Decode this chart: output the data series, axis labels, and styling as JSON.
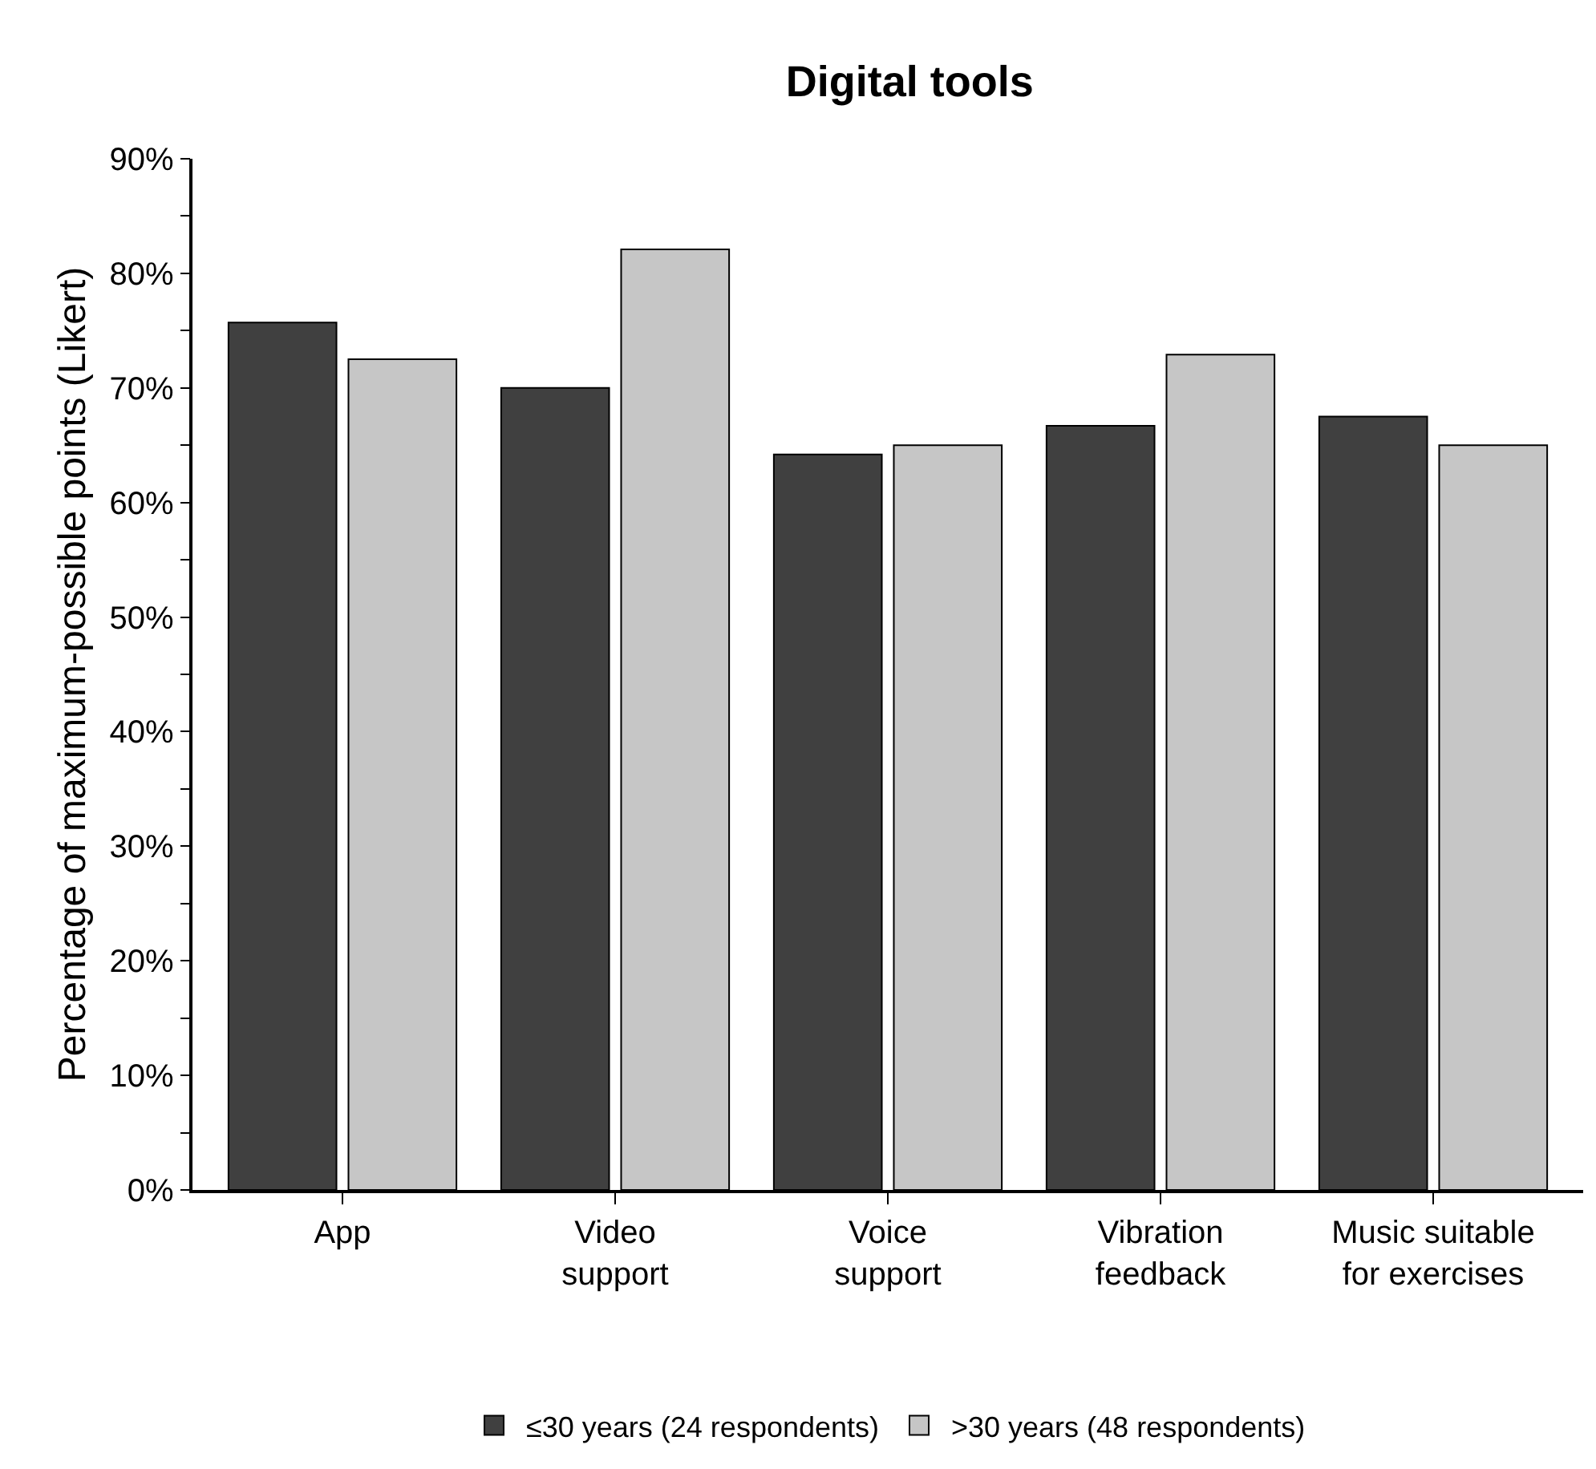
{
  "chart_data": {
    "type": "bar",
    "title": "Digital tools",
    "ylabel": "Percentage of maximum-possible points (Likert)",
    "categories": [
      "App",
      "Video\nsupport",
      "Voice\nsupport",
      "Vibration\nfeedback",
      "Music suitable\nfor exercises"
    ],
    "series": [
      {
        "name": "≤30 years (24 respondents)",
        "color": "#404040",
        "values": [
          75.7,
          70.0,
          64.2,
          66.7,
          67.5
        ]
      },
      {
        "name": ">30 years (48 respondents)",
        "color": "#c6c6c6",
        "values": [
          72.5,
          82.1,
          65.0,
          72.9,
          65.0
        ]
      }
    ],
    "ylim": [
      0,
      90
    ],
    "yticks": [
      {
        "value": 0,
        "label": "0%"
      },
      {
        "value": 5,
        "label": null
      },
      {
        "value": 10,
        "label": "10%"
      },
      {
        "value": 15,
        "label": null
      },
      {
        "value": 20,
        "label": "20%"
      },
      {
        "value": 25,
        "label": null
      },
      {
        "value": 30,
        "label": "30%"
      },
      {
        "value": 35,
        "label": null
      },
      {
        "value": 40,
        "label": "40%"
      },
      {
        "value": 45,
        "label": null
      },
      {
        "value": 50,
        "label": "50%"
      },
      {
        "value": 55,
        "label": null
      },
      {
        "value": 60,
        "label": "60%"
      },
      {
        "value": 65,
        "label": null
      },
      {
        "value": 70,
        "label": "70%"
      },
      {
        "value": 75,
        "label": null
      },
      {
        "value": 80,
        "label": "80%"
      },
      {
        "value": 85,
        "label": null
      },
      {
        "value": 90,
        "label": "90%"
      }
    ],
    "grid": false,
    "legend": "bottom"
  }
}
